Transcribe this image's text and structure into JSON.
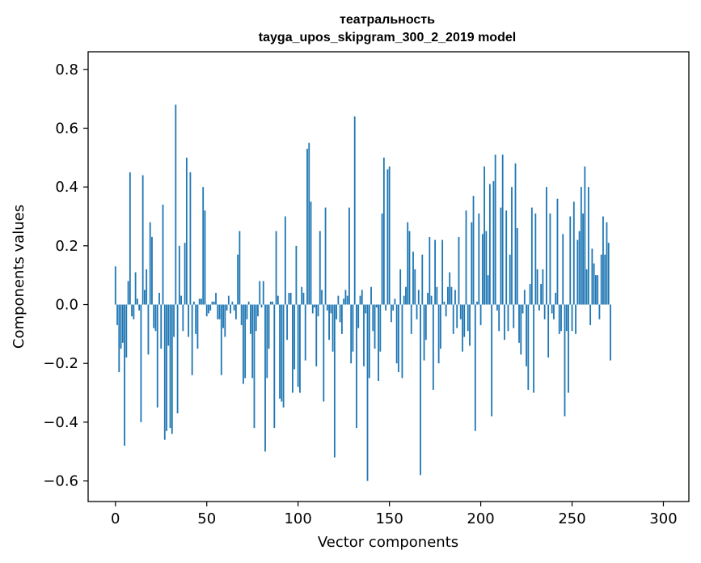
{
  "chart_data": {
    "type": "bar",
    "title": "театральность",
    "subtitle": "tayga_upos_skipgram_300_2_2019 model",
    "xlabel": "Vector components",
    "ylabel": "Components values",
    "xlim": [
      -14.95,
      313.95
    ],
    "ylim": [
      -0.67,
      0.86
    ],
    "xticks": [
      0,
      50,
      100,
      150,
      200,
      250,
      300
    ],
    "yticks": [
      -0.6,
      -0.4,
      -0.2,
      0.0,
      0.2,
      0.4,
      0.6,
      0.8
    ],
    "ytick_labels": [
      "−0.6",
      "−0.4",
      "−0.2",
      "0.0",
      "0.2",
      "0.4",
      "0.6",
      "0.8"
    ],
    "grid": false,
    "color": "#1f77b4",
    "x_start": 0,
    "values": [
      0.13,
      -0.07,
      -0.23,
      -0.15,
      -0.13,
      -0.48,
      -0.18,
      0.08,
      0.45,
      -0.04,
      -0.05,
      0.11,
      0.02,
      -0.02,
      -0.4,
      0.44,
      0.05,
      0.12,
      -0.17,
      0.28,
      0.23,
      -0.08,
      -0.09,
      -0.35,
      0.04,
      -0.15,
      0.34,
      -0.46,
      -0.43,
      -0.14,
      -0.42,
      -0.44,
      -0.11,
      0.68,
      -0.37,
      0.2,
      0.03,
      -0.09,
      0.21,
      0.5,
      -0.11,
      0.45,
      -0.24,
      0.01,
      -0.1,
      -0.15,
      0.02,
      0.02,
      0.4,
      0.32,
      -0.04,
      -0.03,
      -0.02,
      0.01,
      0.01,
      0.04,
      -0.05,
      -0.05,
      -0.24,
      -0.08,
      -0.11,
      -0.02,
      0.03,
      -0.03,
      0.01,
      -0.02,
      -0.05,
      0.17,
      0.25,
      -0.07,
      -0.27,
      -0.25,
      -0.05,
      0.01,
      -0.1,
      -0.25,
      -0.42,
      -0.09,
      -0.04,
      0.08,
      -0.01,
      0.08,
      -0.5,
      -0.25,
      -0.15,
      0.01,
      0.01,
      -0.42,
      0.25,
      0.03,
      -0.32,
      -0.33,
      -0.35,
      0.3,
      -0.12,
      0.04,
      0.04,
      -0.3,
      -0.22,
      0.2,
      -0.28,
      -0.3,
      0.06,
      0.04,
      -0.19,
      0.53,
      0.55,
      0.35,
      -0.03,
      -0.01,
      -0.21,
      -0.04,
      0.25,
      0.05,
      -0.33,
      0.33,
      -0.02,
      -0.12,
      -0.03,
      -0.16,
      -0.52,
      -0.05,
      0.03,
      -0.06,
      -0.1,
      0.02,
      0.05,
      0.03,
      0.33,
      -0.2,
      -0.16,
      0.64,
      -0.42,
      -0.08,
      0.03,
      0.05,
      -0.21,
      -0.03,
      -0.6,
      -0.25,
      0.06,
      -0.09,
      -0.15,
      -0.01,
      -0.26,
      -0.16,
      0.31,
      0.5,
      -0.02,
      0.46,
      0.47,
      -0.06,
      -0.02,
      0.02,
      -0.2,
      -0.23,
      0.12,
      -0.25,
      0.03,
      0.06,
      0.28,
      0.25,
      -0.1,
      0.18,
      0.12,
      -0.05,
      0.05,
      -0.58,
      0.17,
      -0.19,
      -0.12,
      0.04,
      0.23,
      0.03,
      -0.29,
      0.22,
      0.06,
      -0.2,
      -0.15,
      0.22,
      0.01,
      -0.04,
      0.06,
      0.11,
      0.06,
      -0.1,
      0.05,
      -0.08,
      0.23,
      -0.05,
      -0.16,
      -0.11,
      0.32,
      -0.09,
      -0.14,
      0.28,
      0.37,
      -0.43,
      0.01,
      0.31,
      -0.07,
      0.24,
      0.47,
      0.25,
      0.1,
      0.41,
      -0.38,
      0.42,
      0.51,
      -0.02,
      -0.09,
      0.33,
      0.51,
      -0.12,
      0.32,
      -0.09,
      0.17,
      0.4,
      -0.08,
      0.48,
      0.26,
      -0.13,
      -0.17,
      -0.03,
      0.05,
      -0.21,
      -0.29,
      0.07,
      0.33,
      -0.3,
      0.31,
      0.12,
      -0.02,
      0.07,
      0.12,
      -0.05,
      0.4,
      -0.18,
      0.31,
      -0.03,
      -0.05,
      0.04,
      0.36,
      -0.1,
      -0.09,
      0.24,
      -0.38,
      -0.09,
      -0.3,
      0.3,
      -0.09,
      0.35,
      -0.1,
      0.22,
      0.25,
      0.4,
      0.31,
      0.47,
      0.12,
      0.4,
      -0.07,
      0.19,
      0.14,
      0.1,
      0.1,
      -0.05,
      0.17,
      0.3,
      0.17,
      0.28,
      0.21,
      -0.19
    ]
  }
}
